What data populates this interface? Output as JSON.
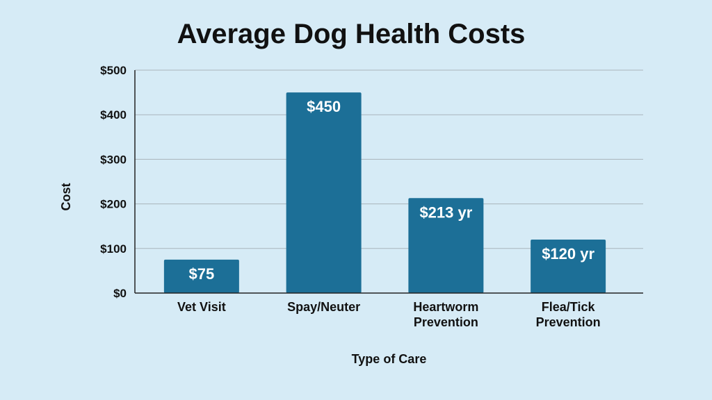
{
  "chart_data": {
    "type": "bar",
    "title": "Average Dog Health Costs",
    "xlabel": "Type of Care",
    "ylabel": "Cost",
    "categories": [
      [
        "Vet Visit"
      ],
      [
        "Spay/Neuter"
      ],
      [
        "Heartworm",
        "Prevention"
      ],
      [
        "Flea/Tick",
        "Prevention"
      ]
    ],
    "values": [
      75,
      450,
      213,
      120
    ],
    "data_labels": [
      "$75",
      "$450",
      "$213 yr",
      "$120 yr"
    ],
    "ylim": [
      0,
      500
    ],
    "yticks": [
      0,
      100,
      200,
      300,
      400,
      500
    ],
    "ytick_labels": [
      "$0",
      "$100",
      "$200",
      "$300",
      "$400",
      "$500"
    ],
    "grid": true,
    "bar_color": "#1c6f97"
  }
}
